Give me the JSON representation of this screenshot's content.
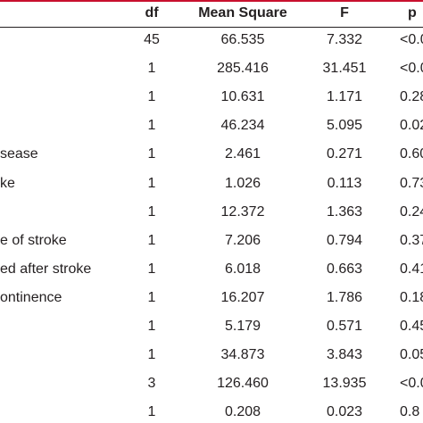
{
  "table": {
    "header": [
      "df",
      "Mean Square",
      "F",
      "p"
    ],
    "rows": [
      {
        "df": "45",
        "ms": "66.535",
        "f": "7.332",
        "p": "<0.0"
      },
      {
        "df": "1",
        "ms": "285.416",
        "f": "31.451",
        "p": "<0.0"
      },
      {
        "df": "1",
        "ms": "10.631",
        "f": "1.171",
        "p": "0.28"
      },
      {
        "df": "1",
        "ms": "46.234",
        "f": "5.095",
        "p": "0.02"
      },
      {
        "label": "sease",
        "df": "1",
        "ms": "2.461",
        "f": "0.271",
        "p": "0.60"
      },
      {
        "label": "ke",
        "df": "1",
        "ms": "1.026",
        "f": "0.113",
        "p": "0.73"
      },
      {
        "df": "1",
        "ms": "12.372",
        "f": "1.363",
        "p": "0.24"
      },
      {
        "label": "e of stroke",
        "df": "1",
        "ms": "7.206",
        "f": "0.794",
        "p": "0.37"
      },
      {
        "label": "ed after stroke",
        "df": "1",
        "ms": "6.018",
        "f": "0.663",
        "p": "0.41"
      },
      {
        "label": "ontinence",
        "df": "1",
        "ms": "16.207",
        "f": "1.786",
        "p": "0.18"
      },
      {
        "df": "1",
        "ms": "5.179",
        "f": "0.571",
        "p": "0.45"
      },
      {
        "df": "1",
        "ms": "34.873",
        "f": "3.843",
        "p": "0.05"
      },
      {
        "df": "3",
        "ms": "126.460",
        "f": "13.935",
        "p": "<0.0"
      },
      {
        "df": "1",
        "ms": "0.208",
        "f": "0.023",
        "p": "0.8"
      }
    ]
  }
}
